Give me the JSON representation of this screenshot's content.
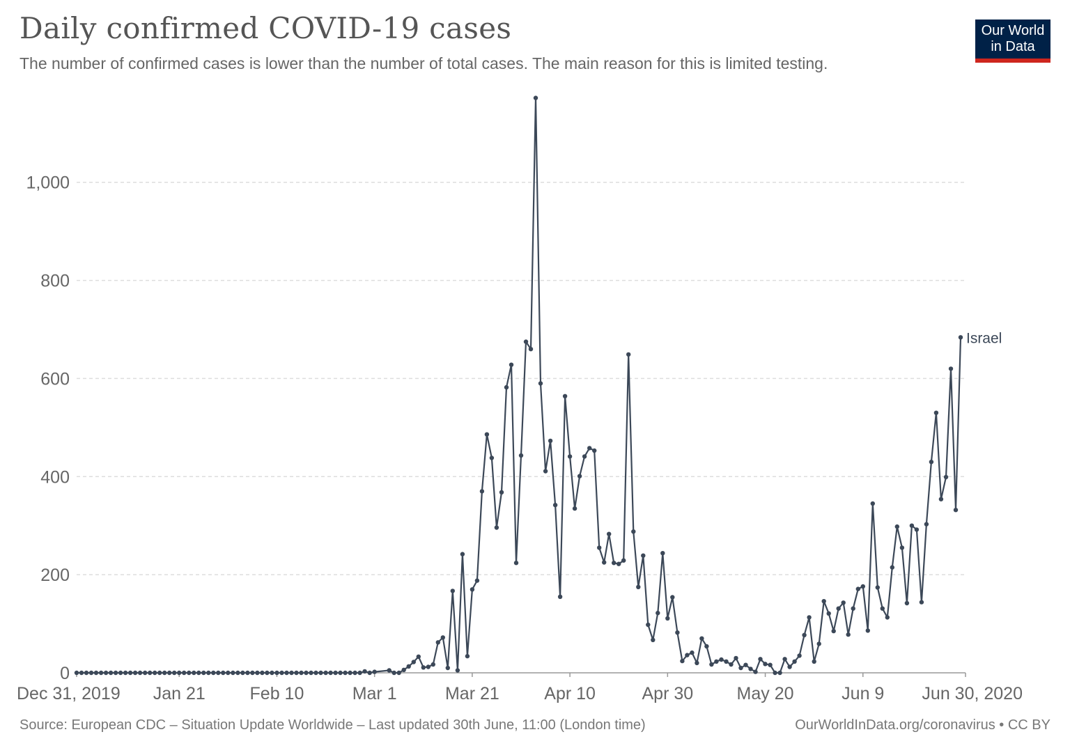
{
  "header": {
    "title": "Daily confirmed COVID-19 cases",
    "subtitle": "The number of confirmed cases is lower than the number of total cases. The main reason for this is limited testing.",
    "logo_line1": "Our World",
    "logo_line2": "in Data"
  },
  "footer": {
    "source": "Source: European CDC – Situation Update Worldwide – Last updated 30th June, 11:00 (London time)",
    "credit": "OurWorldInData.org/coronavirus • CC BY"
  },
  "colors": {
    "series": "#3c4858",
    "grid": "#dddddd",
    "logo_bg": "#002147",
    "logo_accent": "#ce261e"
  },
  "chart_data": {
    "type": "line",
    "title": "Daily confirmed COVID-19 cases",
    "xlabel": "",
    "ylabel": "",
    "x_start": "2019-12-31",
    "x_end": "2020-06-30",
    "xlim": [
      "2019-12-31",
      "2020-06-30"
    ],
    "ylim": [
      0,
      1170
    ],
    "y_ticks": [
      0,
      200,
      400,
      600,
      800,
      1000
    ],
    "y_tick_labels": [
      "0",
      "200",
      "400",
      "600",
      "800",
      "1,000"
    ],
    "x_ticks": [
      {
        "date": "2019-12-31",
        "label": "Dec 31, 2019"
      },
      {
        "date": "2020-01-21",
        "label": "Jan 21"
      },
      {
        "date": "2020-02-10",
        "label": "Feb 10"
      },
      {
        "date": "2020-03-01",
        "label": "Mar 1"
      },
      {
        "date": "2020-03-21",
        "label": "Mar 21"
      },
      {
        "date": "2020-04-10",
        "label": "Apr 10"
      },
      {
        "date": "2020-04-30",
        "label": "Apr 30"
      },
      {
        "date": "2020-05-20",
        "label": "May 20"
      },
      {
        "date": "2020-06-09",
        "label": "Jun 9"
      },
      {
        "date": "2020-06-30",
        "label": "Jun 30, 2020"
      }
    ],
    "grid": true,
    "legend": "inline-end-label",
    "series": [
      {
        "name": "Israel",
        "points": [
          [
            "2019-12-31",
            0
          ],
          [
            "2020-01-01",
            0
          ],
          [
            "2020-01-02",
            0
          ],
          [
            "2020-01-03",
            0
          ],
          [
            "2020-01-04",
            0
          ],
          [
            "2020-01-05",
            0
          ],
          [
            "2020-01-06",
            0
          ],
          [
            "2020-01-07",
            0
          ],
          [
            "2020-01-08",
            0
          ],
          [
            "2020-01-09",
            0
          ],
          [
            "2020-01-10",
            0
          ],
          [
            "2020-01-11",
            0
          ],
          [
            "2020-01-12",
            0
          ],
          [
            "2020-01-13",
            0
          ],
          [
            "2020-01-14",
            0
          ],
          [
            "2020-01-15",
            0
          ],
          [
            "2020-01-16",
            0
          ],
          [
            "2020-01-17",
            0
          ],
          [
            "2020-01-18",
            0
          ],
          [
            "2020-01-19",
            0
          ],
          [
            "2020-01-20",
            0
          ],
          [
            "2020-01-21",
            0
          ],
          [
            "2020-01-22",
            0
          ],
          [
            "2020-01-23",
            0
          ],
          [
            "2020-01-24",
            0
          ],
          [
            "2020-01-25",
            0
          ],
          [
            "2020-01-26",
            0
          ],
          [
            "2020-01-27",
            0
          ],
          [
            "2020-01-28",
            0
          ],
          [
            "2020-01-29",
            0
          ],
          [
            "2020-01-30",
            0
          ],
          [
            "2020-01-31",
            0
          ],
          [
            "2020-02-01",
            0
          ],
          [
            "2020-02-02",
            0
          ],
          [
            "2020-02-03",
            0
          ],
          [
            "2020-02-04",
            0
          ],
          [
            "2020-02-05",
            0
          ],
          [
            "2020-02-06",
            0
          ],
          [
            "2020-02-07",
            0
          ],
          [
            "2020-02-08",
            0
          ],
          [
            "2020-02-09",
            0
          ],
          [
            "2020-02-10",
            0
          ],
          [
            "2020-02-11",
            0
          ],
          [
            "2020-02-12",
            0
          ],
          [
            "2020-02-13",
            0
          ],
          [
            "2020-02-14",
            0
          ],
          [
            "2020-02-15",
            0
          ],
          [
            "2020-02-16",
            0
          ],
          [
            "2020-02-17",
            0
          ],
          [
            "2020-02-18",
            0
          ],
          [
            "2020-02-19",
            0
          ],
          [
            "2020-02-20",
            0
          ],
          [
            "2020-02-21",
            0
          ],
          [
            "2020-02-22",
            0
          ],
          [
            "2020-02-23",
            0
          ],
          [
            "2020-02-24",
            0
          ],
          [
            "2020-02-25",
            0
          ],
          [
            "2020-02-26",
            0
          ],
          [
            "2020-02-27",
            0
          ],
          [
            "2020-02-28",
            3
          ],
          [
            "2020-02-29",
            0
          ],
          [
            "2020-03-01",
            2
          ],
          [
            "2020-03-04",
            5
          ],
          [
            "2020-03-05",
            0
          ],
          [
            "2020-03-06",
            0
          ],
          [
            "2020-03-07",
            6
          ],
          [
            "2020-03-08",
            13
          ],
          [
            "2020-03-09",
            22
          ],
          [
            "2020-03-10",
            33
          ],
          [
            "2020-03-11",
            11
          ],
          [
            "2020-03-12",
            12
          ],
          [
            "2020-03-13",
            17
          ],
          [
            "2020-03-14",
            62
          ],
          [
            "2020-03-15",
            72
          ],
          [
            "2020-03-16",
            10
          ],
          [
            "2020-03-17",
            167
          ],
          [
            "2020-03-18",
            5
          ],
          [
            "2020-03-19",
            242
          ],
          [
            "2020-03-20",
            34
          ],
          [
            "2020-03-21",
            170
          ],
          [
            "2020-03-22",
            188
          ],
          [
            "2020-03-23",
            370
          ],
          [
            "2020-03-24",
            486
          ],
          [
            "2020-03-25",
            438
          ],
          [
            "2020-03-26",
            296
          ],
          [
            "2020-03-27",
            368
          ],
          [
            "2020-03-28",
            582
          ],
          [
            "2020-03-29",
            628
          ],
          [
            "2020-03-30",
            224
          ],
          [
            "2020-03-31",
            443
          ],
          [
            "2020-04-01",
            675
          ],
          [
            "2020-04-02",
            660
          ],
          [
            "2020-04-03",
            1172
          ],
          [
            "2020-04-04",
            590
          ],
          [
            "2020-04-05",
            411
          ],
          [
            "2020-04-06",
            473
          ],
          [
            "2020-04-07",
            342
          ],
          [
            "2020-04-08",
            155
          ],
          [
            "2020-04-09",
            564
          ],
          [
            "2020-04-10",
            441
          ],
          [
            "2020-04-11",
            335
          ],
          [
            "2020-04-12",
            401
          ],
          [
            "2020-04-13",
            441
          ],
          [
            "2020-04-14",
            458
          ],
          [
            "2020-04-15",
            453
          ],
          [
            "2020-04-16",
            255
          ],
          [
            "2020-04-17",
            225
          ],
          [
            "2020-04-18",
            283
          ],
          [
            "2020-04-19",
            224
          ],
          [
            "2020-04-20",
            222
          ],
          [
            "2020-04-21",
            229
          ],
          [
            "2020-04-22",
            649
          ],
          [
            "2020-04-23",
            288
          ],
          [
            "2020-04-24",
            175
          ],
          [
            "2020-04-25",
            239
          ],
          [
            "2020-04-26",
            98
          ],
          [
            "2020-04-27",
            67
          ],
          [
            "2020-04-28",
            122
          ],
          [
            "2020-04-29",
            244
          ],
          [
            "2020-04-30",
            111
          ],
          [
            "2020-05-01",
            154
          ],
          [
            "2020-05-02",
            82
          ],
          [
            "2020-05-03",
            24
          ],
          [
            "2020-05-04",
            36
          ],
          [
            "2020-05-05",
            41
          ],
          [
            "2020-05-06",
            20
          ],
          [
            "2020-05-07",
            70
          ],
          [
            "2020-05-08",
            54
          ],
          [
            "2020-05-09",
            17
          ],
          [
            "2020-05-10",
            23
          ],
          [
            "2020-05-11",
            27
          ],
          [
            "2020-05-12",
            23
          ],
          [
            "2020-05-13",
            17
          ],
          [
            "2020-05-14",
            30
          ],
          [
            "2020-05-15",
            10
          ],
          [
            "2020-05-16",
            16
          ],
          [
            "2020-05-17",
            8
          ],
          [
            "2020-05-18",
            2
          ],
          [
            "2020-05-19",
            28
          ],
          [
            "2020-05-20",
            18
          ],
          [
            "2020-05-21",
            16
          ],
          [
            "2020-05-22",
            0
          ],
          [
            "2020-05-23",
            0
          ],
          [
            "2020-05-24",
            28
          ],
          [
            "2020-05-25",
            12
          ],
          [
            "2020-05-26",
            23
          ],
          [
            "2020-05-27",
            35
          ],
          [
            "2020-05-28",
            77
          ],
          [
            "2020-05-29",
            113
          ],
          [
            "2020-05-30",
            23
          ],
          [
            "2020-05-31",
            59
          ],
          [
            "2020-06-01",
            146
          ],
          [
            "2020-06-02",
            121
          ],
          [
            "2020-06-03",
            85
          ],
          [
            "2020-06-04",
            131
          ],
          [
            "2020-06-05",
            143
          ],
          [
            "2020-06-06",
            78
          ],
          [
            "2020-06-07",
            131
          ],
          [
            "2020-06-08",
            171
          ],
          [
            "2020-06-09",
            176
          ],
          [
            "2020-06-10",
            86
          ],
          [
            "2020-06-11",
            345
          ],
          [
            "2020-06-12",
            174
          ],
          [
            "2020-06-13",
            131
          ],
          [
            "2020-06-14",
            113
          ],
          [
            "2020-06-15",
            215
          ],
          [
            "2020-06-16",
            298
          ],
          [
            "2020-06-17",
            255
          ],
          [
            "2020-06-18",
            142
          ],
          [
            "2020-06-19",
            300
          ],
          [
            "2020-06-20",
            292
          ],
          [
            "2020-06-21",
            144
          ],
          [
            "2020-06-22",
            303
          ],
          [
            "2020-06-23",
            430
          ],
          [
            "2020-06-24",
            530
          ],
          [
            "2020-06-25",
            354
          ],
          [
            "2020-06-26",
            399
          ],
          [
            "2020-06-27",
            620
          ],
          [
            "2020-06-28",
            332
          ],
          [
            "2020-06-29",
            684
          ]
        ]
      }
    ]
  }
}
